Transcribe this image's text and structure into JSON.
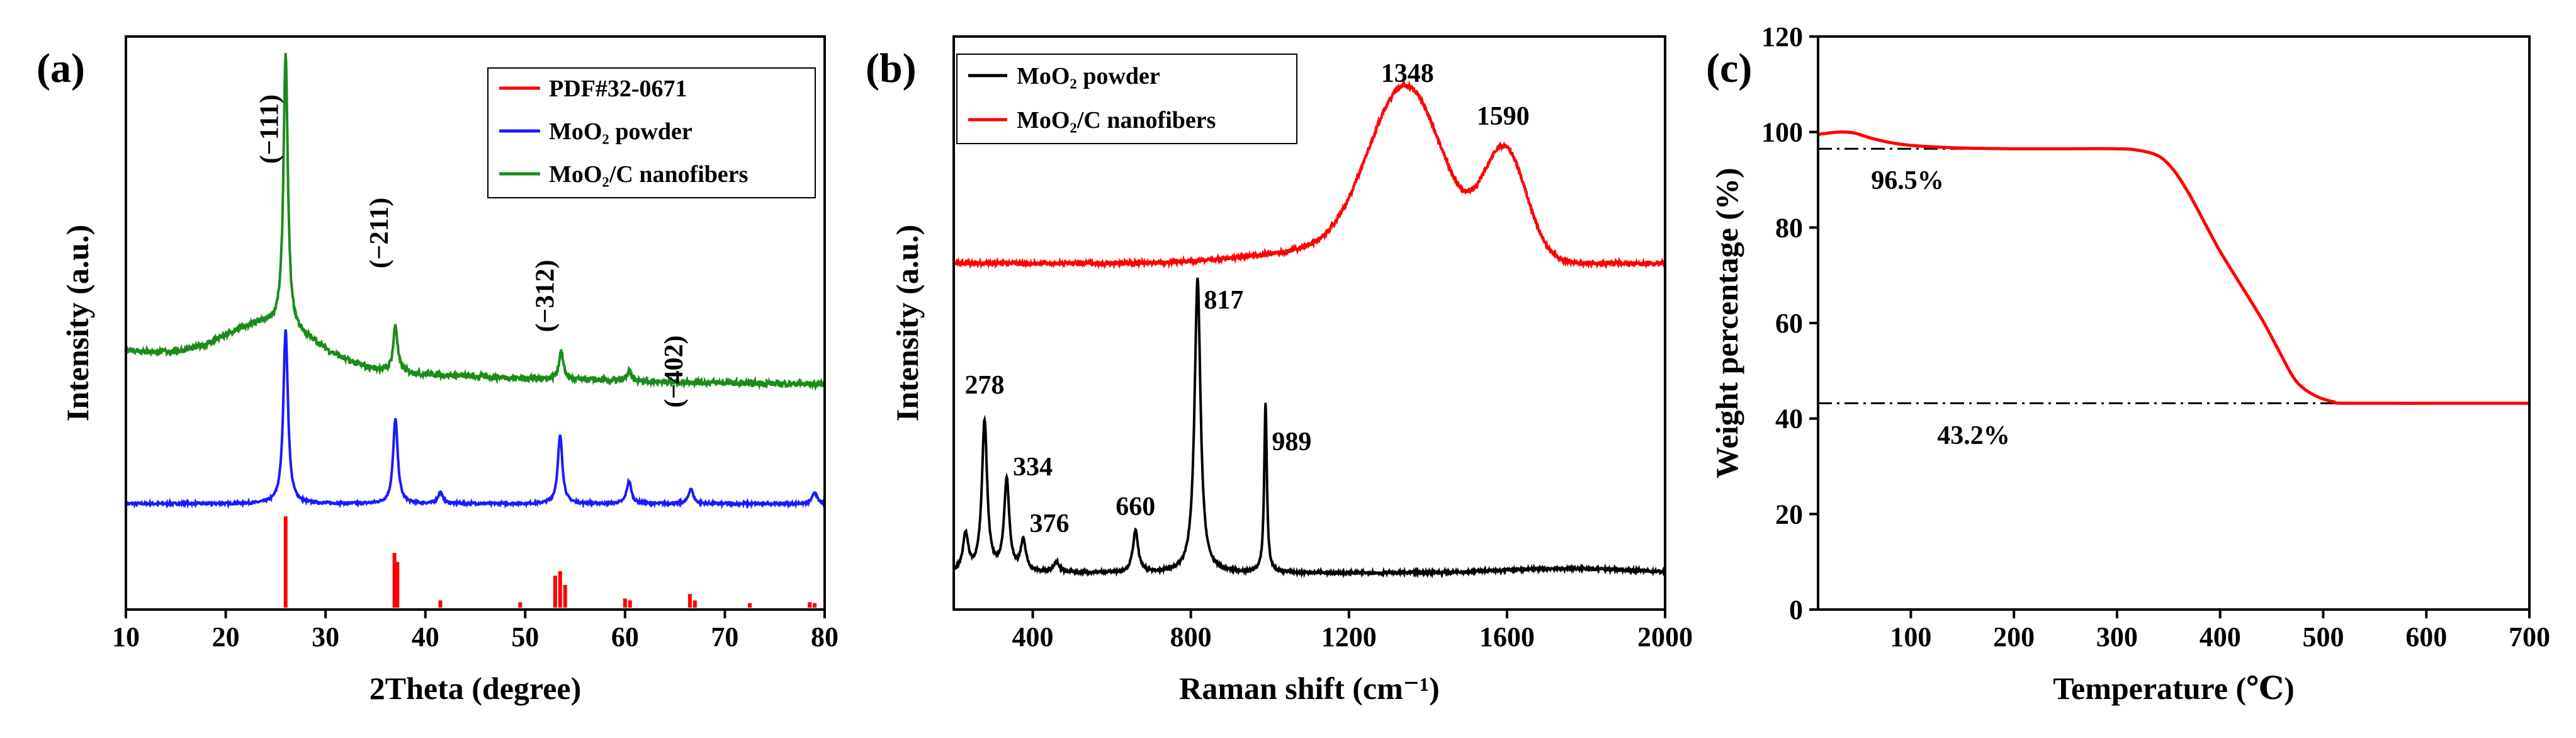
{
  "chart_data": [
    {
      "panel": "(a)",
      "type": "line",
      "xlabel": "2Theta (degree)",
      "ylabel": "Intensity (a.u.)",
      "xlim": [
        10,
        80
      ],
      "xticks": [
        "10",
        "20",
        "30",
        "40",
        "50",
        "60",
        "70",
        "80"
      ],
      "legend": [
        "PDF#32-0671",
        "MoO₂ powder",
        "MoO₂/C nanofibers"
      ],
      "legend_position": "top-right",
      "colors": {
        "pdf": "#ff0000",
        "powder": "#1a1aff",
        "nanofibers": "#1a8c1a"
      },
      "peak_labels": [
        {
          "text": "(−111)",
          "x": 26.0
        },
        {
          "text": "(−211)",
          "x": 37.0
        },
        {
          "text": "(−312)",
          "x": 53.6
        },
        {
          "text": "(−402)",
          "x": 66.5
        }
      ],
      "pdf_sticks": [
        {
          "x": 26.0,
          "h": 1.0
        },
        {
          "x": 36.9,
          "h": 0.6
        },
        {
          "x": 37.2,
          "h": 0.5
        },
        {
          "x": 41.5,
          "h": 0.08
        },
        {
          "x": 49.5,
          "h": 0.06
        },
        {
          "x": 53.0,
          "h": 0.35
        },
        {
          "x": 53.5,
          "h": 0.4
        },
        {
          "x": 54.0,
          "h": 0.25
        },
        {
          "x": 60.0,
          "h": 0.1
        },
        {
          "x": 60.5,
          "h": 0.08
        },
        {
          "x": 66.5,
          "h": 0.15
        },
        {
          "x": 67.0,
          "h": 0.08
        },
        {
          "x": 72.5,
          "h": 0.05
        },
        {
          "x": 78.5,
          "h": 0.06
        },
        {
          "x": 79.0,
          "h": 0.05
        }
      ],
      "powder_peaks": [
        {
          "x": 26.0,
          "h": 0.92
        },
        {
          "x": 37.0,
          "h": 0.45
        },
        {
          "x": 41.5,
          "h": 0.06
        },
        {
          "x": 53.5,
          "h": 0.36
        },
        {
          "x": 60.4,
          "h": 0.12
        },
        {
          "x": 66.6,
          "h": 0.08
        },
        {
          "x": 79.0,
          "h": 0.06
        }
      ],
      "nanofiber_peaks": [
        {
          "x": 26.0,
          "h": 1.45
        },
        {
          "x": 37.0,
          "h": 0.25
        },
        {
          "x": 53.6,
          "h": 0.15
        },
        {
          "x": 60.4,
          "h": 0.05
        }
      ]
    },
    {
      "panel": "(b)",
      "type": "line",
      "xlabel": "Raman shift (cm⁻¹)",
      "ylabel": "Intensity (a.u.)",
      "xlim": [
        200,
        2000
      ],
      "xticks": [
        "400",
        "800",
        "1200",
        "1600",
        "2000"
      ],
      "legend": [
        "MoO₂ powder",
        "MoO₂/C nanofibers"
      ],
      "legend_position": "top-left",
      "colors": {
        "powder": "#000000",
        "nanofibers": "#ff0000"
      },
      "powder_peaks": [
        {
          "x": 230,
          "h": 0.1
        },
        {
          "x": 278,
          "h": 0.4
        },
        {
          "x": 334,
          "h": 0.24
        },
        {
          "x": 376,
          "h": 0.08
        },
        {
          "x": 460,
          "h": 0.03
        },
        {
          "x": 660,
          "h": 0.11
        },
        {
          "x": 817,
          "h": 0.78
        },
        {
          "x": 989,
          "h": 0.45
        }
      ],
      "nanofiber_bands": [
        {
          "x": 1348,
          "h": 0.52
        },
        {
          "x": 1590,
          "h": 0.34
        }
      ],
      "peak_labels": [
        "278",
        "334",
        "376",
        "660",
        "817",
        "989",
        "1348",
        "1590"
      ]
    },
    {
      "panel": "(c)",
      "type": "line",
      "xlabel": "Temperature (℃)",
      "ylabel": "Weight percentage (%)",
      "xlim": [
        10,
        700
      ],
      "ylim": [
        0,
        120
      ],
      "xticks": [
        "100",
        "200",
        "300",
        "400",
        "500",
        "600",
        "700"
      ],
      "yticks": [
        "0",
        "20",
        "40",
        "60",
        "80",
        "100",
        "120"
      ],
      "color": "#ff0000",
      "curve": [
        [
          10,
          99.5
        ],
        [
          30,
          100.0
        ],
        [
          45,
          99.8
        ],
        [
          60,
          98.8
        ],
        [
          80,
          97.8
        ],
        [
          100,
          97.2
        ],
        [
          130,
          96.8
        ],
        [
          160,
          96.6
        ],
        [
          200,
          96.5
        ],
        [
          250,
          96.5
        ],
        [
          300,
          96.5
        ],
        [
          320,
          96.2
        ],
        [
          340,
          95.0
        ],
        [
          355,
          92.0
        ],
        [
          370,
          87.0
        ],
        [
          385,
          81.0
        ],
        [
          400,
          75.0
        ],
        [
          420,
          68.0
        ],
        [
          440,
          61.0
        ],
        [
          455,
          55.0
        ],
        [
          470,
          49.0
        ],
        [
          480,
          46.5
        ],
        [
          495,
          44.5
        ],
        [
          510,
          43.5
        ],
        [
          520,
          43.2
        ],
        [
          600,
          43.2
        ],
        [
          700,
          43.2
        ]
      ],
      "reference_lines": [
        {
          "y": 96.5,
          "x_from": 10,
          "x_to": 200,
          "label": "96.5%"
        },
        {
          "y": 43.2,
          "x_from": 10,
          "x_to": 520,
          "label": "43.2%"
        }
      ]
    }
  ],
  "panels": {
    "a": "(a)",
    "b": "(b)",
    "c": "(c)"
  }
}
